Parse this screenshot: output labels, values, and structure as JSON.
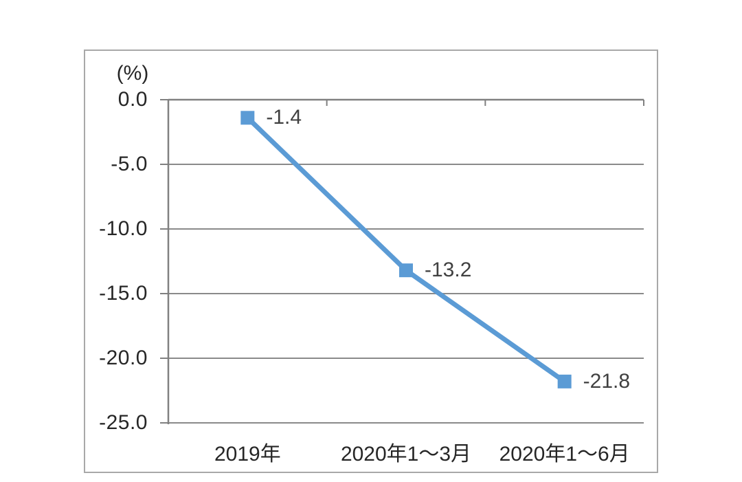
{
  "figure": {
    "unit_label": "(%)",
    "line_color": "#5b9bd5",
    "marker_color": "#5b9bd5",
    "grid_color": "#8a8a8a",
    "axis_color": "#808080",
    "frame_color": "#a8a8a8",
    "axis_text_color": "#262626",
    "data_label_color": "#404040"
  },
  "chart_data": {
    "type": "line",
    "title": "",
    "xlabel": "",
    "ylabel": "(%)",
    "categories": [
      "2019年",
      "2020年1～3月",
      "2020年1～6月"
    ],
    "series": [
      {
        "name": "",
        "values": [
          -1.4,
          -13.2,
          -21.8
        ]
      }
    ],
    "data_labels": [
      "-1.4",
      "-13.2",
      "-21.8"
    ],
    "ylim": [
      -25,
      0
    ],
    "ytick_values": [
      0,
      -5,
      -10,
      -15,
      -20,
      -25
    ],
    "ytick_labels": [
      "0.0",
      "-5.0",
      "-10.0",
      "-15.0",
      "-20.0",
      "-25.0"
    ],
    "grid": "horizontal",
    "legend": "none",
    "marker": "square"
  }
}
